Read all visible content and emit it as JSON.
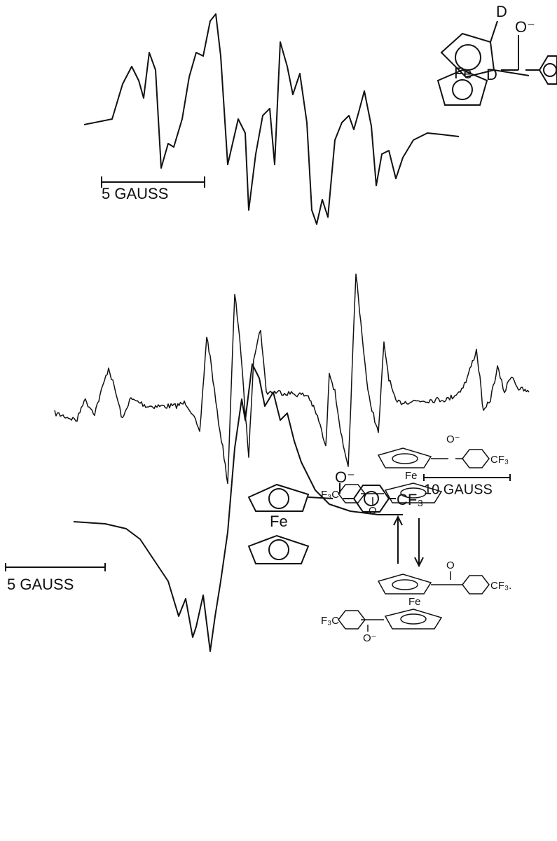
{
  "panels": [
    {
      "scale_bar": "5 GAUSS",
      "structure": [
        "D",
        "O⁻",
        "Fe",
        "D"
      ]
    },
    {
      "scale_bar": "10 GAUSS",
      "structure": [
        "O⁻",
        "Fe",
        "CF₃"
      ]
    },
    {
      "scale_bar": "5 GAUSS",
      "structure_top": [
        "O⁻",
        "Fe",
        "CF₃",
        "F₃C",
        "O"
      ],
      "structure_bottom": [
        "O",
        "Fe",
        "CF₃.",
        "F₃C",
        "O⁻"
      ]
    }
  ]
}
